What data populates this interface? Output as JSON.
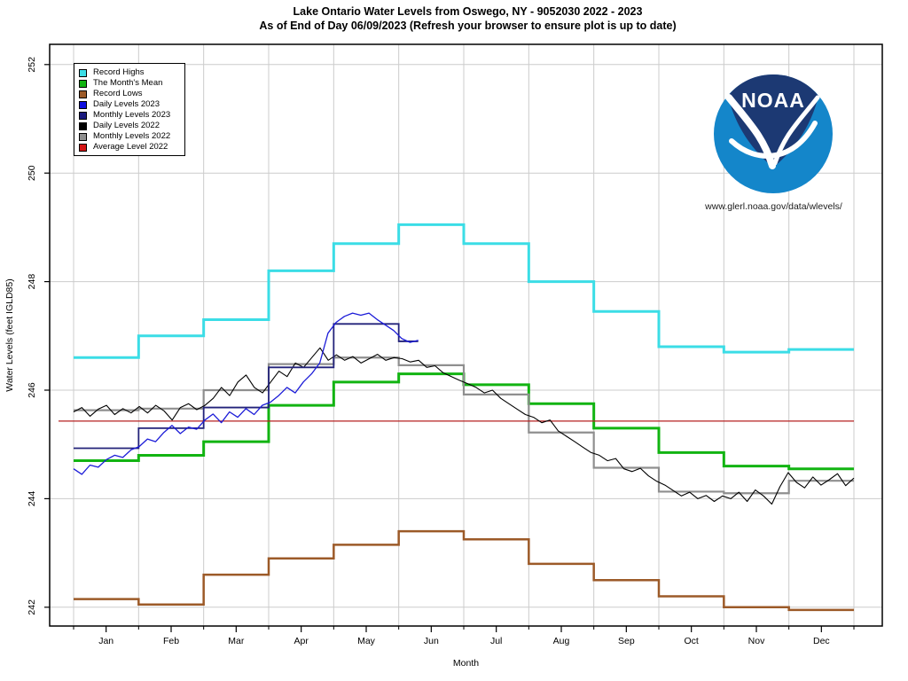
{
  "page": {
    "title": "Lake Ontario Water Levels from Oswego, NY - 9052030 2022 - 2023",
    "subtitle": "As of End of Day 06/09/2023 (Refresh your browser to ensure plot is up to date)",
    "noaa_logo_text": "NOAA",
    "noaa_url": "www.glerl.noaa.gov/data/wlevels/"
  },
  "chart_data": {
    "type": "line",
    "title": "Lake Ontario Water Levels from Oswego, NY - 9052030 2022 - 2023",
    "subtitle": "As of End of Day 06/09/2023 (Refresh your browser to ensure plot is up to date)",
    "xlabel": "Month",
    "ylabel": "Water Levels (feet IGLD85)",
    "ylim": [
      241.65,
      252.35
    ],
    "yticks": [
      242,
      244,
      246,
      248,
      250,
      252
    ],
    "months": [
      "Jan",
      "Feb",
      "Mar",
      "Apr",
      "May",
      "Jun",
      "Jul",
      "Aug",
      "Sep",
      "Oct",
      "Nov",
      "Dec"
    ],
    "grid": true,
    "legend_position": "top-left",
    "legend": [
      {
        "label": "Record Highs",
        "color": "#3bdde6"
      },
      {
        "label": "The Month's Mean",
        "color": "#12b412"
      },
      {
        "label": "Record Lows",
        "color": "#9c5a28"
      },
      {
        "label": "Daily Levels 2023",
        "color": "#0f0fe0"
      },
      {
        "label": "Monthly Levels 2023",
        "color": "#1a1a7e"
      },
      {
        "label": "Daily Levels 2022",
        "color": "#000000"
      },
      {
        "label": "Monthly Levels 2022",
        "color": "#8f8f8f"
      },
      {
        "label": "Average Level 2022",
        "color": "#d41414"
      }
    ],
    "series": [
      {
        "name": "Record Highs",
        "kind": "monthly-step",
        "color": "#3bdde6",
        "width": 3,
        "values": [
          246.6,
          247.0,
          247.3,
          248.2,
          248.7,
          249.05,
          248.7,
          248.0,
          247.45,
          246.8,
          246.7,
          246.75
        ]
      },
      {
        "name": "The Month's Mean",
        "kind": "monthly-step",
        "color": "#12b412",
        "width": 3,
        "values": [
          244.7,
          244.8,
          245.05,
          245.72,
          246.15,
          246.3,
          246.1,
          245.75,
          245.3,
          244.85,
          244.6,
          244.55
        ]
      },
      {
        "name": "Record Lows",
        "kind": "monthly-step",
        "color": "#9c5a28",
        "width": 2.5,
        "values": [
          242.15,
          242.05,
          242.6,
          242.9,
          243.15,
          243.4,
          243.25,
          242.8,
          242.5,
          242.2,
          242.0,
          241.95
        ]
      },
      {
        "name": "Monthly Levels 2022",
        "kind": "monthly-step",
        "color": "#8f8f8f",
        "width": 2.2,
        "values": [
          245.63,
          245.66,
          246.0,
          246.48,
          246.6,
          246.46,
          245.92,
          245.22,
          244.57,
          244.13,
          244.1,
          244.33
        ]
      },
      {
        "name": "Average Level 2022",
        "kind": "hline",
        "color": "#b52020",
        "width": 1.2,
        "value": 245.43
      },
      {
        "name": "Daily Levels 2022",
        "kind": "daily",
        "color": "#000000",
        "width": 1.1,
        "x_end": 12,
        "values": [
          245.6,
          245.68,
          245.52,
          245.65,
          245.72,
          245.55,
          245.66,
          245.58,
          245.7,
          245.58,
          245.72,
          245.62,
          245.45,
          245.68,
          245.75,
          245.64,
          245.72,
          245.85,
          246.05,
          245.9,
          246.15,
          246.28,
          246.05,
          245.95,
          246.15,
          246.35,
          246.25,
          246.5,
          246.42,
          246.6,
          246.78,
          246.55,
          246.65,
          246.55,
          246.62,
          246.5,
          246.58,
          246.66,
          246.55,
          246.6,
          246.58,
          246.52,
          246.55,
          246.42,
          246.45,
          246.32,
          246.25,
          246.18,
          246.12,
          246.05,
          245.95,
          246.0,
          245.85,
          245.75,
          245.65,
          245.55,
          245.5,
          245.4,
          245.45,
          245.25,
          245.15,
          245.05,
          244.95,
          244.85,
          244.8,
          244.7,
          244.74,
          244.55,
          244.5,
          244.56,
          244.42,
          244.32,
          244.25,
          244.15,
          244.05,
          244.12,
          244.0,
          244.06,
          243.95,
          244.05,
          244.0,
          244.12,
          243.95,
          244.16,
          244.05,
          243.9,
          244.22,
          244.48,
          244.3,
          244.2,
          244.4,
          244.25,
          244.35,
          244.46,
          244.24,
          244.38
        ]
      },
      {
        "name": "Monthly Levels 2023",
        "kind": "monthly-step",
        "color": "#23237a",
        "width": 1.8,
        "end_month": 5.3,
        "values": [
          244.93,
          245.3,
          245.68,
          246.42,
          247.22,
          246.9
        ]
      },
      {
        "name": "Daily Levels 2023",
        "kind": "daily",
        "color": "#1c1cd8",
        "width": 1.3,
        "x_end": 5.3,
        "values": [
          244.55,
          244.45,
          244.62,
          244.58,
          244.72,
          244.8,
          244.76,
          244.9,
          244.96,
          245.1,
          245.05,
          245.22,
          245.35,
          245.2,
          245.32,
          245.28,
          245.45,
          245.56,
          245.4,
          245.6,
          245.5,
          245.66,
          245.55,
          245.72,
          245.78,
          245.9,
          246.05,
          245.95,
          246.15,
          246.3,
          246.5,
          247.05,
          247.25,
          247.36,
          247.42,
          247.38,
          247.42,
          247.3,
          247.2,
          247.1,
          246.95,
          246.88,
          246.92
        ]
      }
    ]
  }
}
